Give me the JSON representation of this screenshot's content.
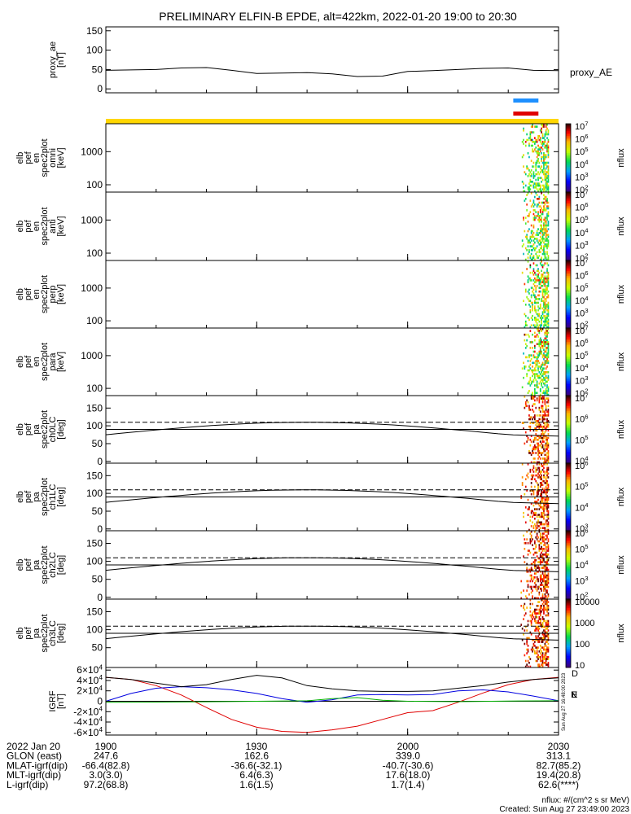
{
  "chart_data": {
    "type": "line",
    "title": "PRELIMINARY ELFIN-B EPDE, alt=422km, 2022-01-20 19:00 to 20:30",
    "x_range": [
      "2022-01-20 19:00",
      "2022-01-20 20:30"
    ],
    "panels": [
      {
        "id": "proxy_ae",
        "type": "line",
        "ylabel": [
          "proxy_ae",
          "[nT]"
        ],
        "ylim": [
          -10,
          160
        ],
        "yticks": [
          "0",
          "50",
          "100",
          "150"
        ],
        "right_label": "proxy_AE",
        "series": [
          {
            "name": "proxy_AE",
            "color": "#000000",
            "x": [
              "19:00",
              "19:05",
              "19:10",
              "19:15",
              "19:20",
              "19:25",
              "19:30",
              "19:35",
              "19:40",
              "19:45",
              "19:50",
              "19:55",
              "20:00",
              "20:05",
              "20:10",
              "20:15",
              "20:20",
              "20:25",
              "20:30"
            ],
            "y": [
              48,
              49,
              50,
              54,
              55,
              48,
              40,
              41,
              42,
              39,
              32,
              33,
              45,
              47,
              50,
              53,
              54,
              48,
              47
            ]
          }
        ],
        "flag_bars": [
          {
            "color": "#1e90ff",
            "from": "20:21",
            "to": "20:26"
          },
          {
            "color": "#e00000",
            "from": "20:21",
            "to": "20:26"
          }
        ],
        "full_bar": {
          "color": "#ffd700",
          "from": "19:00",
          "to": "20:30"
        }
      },
      {
        "id": "omni",
        "type": "heatmap",
        "ylabel": [
          "elb",
          "pef",
          "en",
          "spec2plot",
          "omni",
          "[keV]"
        ],
        "scale": "log",
        "ylim": [
          60,
          7000
        ],
        "yticks": [
          "100",
          "1000"
        ],
        "colorbar": {
          "label": "nflux",
          "ticks": [
            "10^2",
            "10^3",
            "10^4",
            "10^5",
            "10^6",
            "10^7"
          ]
        }
      },
      {
        "id": "anti",
        "type": "heatmap",
        "ylabel": [
          "elb",
          "pef",
          "en",
          "spec2plot",
          "anti",
          "[keV]"
        ],
        "scale": "log",
        "ylim": [
          60,
          7000
        ],
        "yticks": [
          "100",
          "1000"
        ],
        "colorbar": {
          "label": "nflux",
          "ticks": [
            "10^2",
            "10^3",
            "10^4",
            "10^5",
            "10^6",
            "10^7"
          ]
        }
      },
      {
        "id": "perp",
        "type": "heatmap",
        "ylabel": [
          "elb",
          "pef",
          "en",
          "spec2plot",
          "perp",
          "[keV]"
        ],
        "scale": "log",
        "ylim": [
          60,
          7000
        ],
        "yticks": [
          "100",
          "1000"
        ],
        "colorbar": {
          "label": "nflux",
          "ticks": [
            "10^2",
            "10^3",
            "10^4",
            "10^5",
            "10^6",
            "10^7"
          ]
        }
      },
      {
        "id": "para",
        "type": "heatmap",
        "ylabel": [
          "elb",
          "pef",
          "en",
          "spec2plot",
          "para",
          "[keV]"
        ],
        "scale": "log",
        "ylim": [
          60,
          7000
        ],
        "yticks": [
          "100",
          "1000"
        ],
        "colorbar": {
          "label": "nflux",
          "ticks": [
            "10^2",
            "10^3",
            "10^4",
            "10^5",
            "10^6",
            "10^7"
          ]
        }
      },
      {
        "id": "ch0LC",
        "type": "heatmap",
        "ylabel": [
          "elb",
          "pef",
          "pa",
          "spec2plot",
          "ch0LC",
          "[deg]"
        ],
        "ylim": [
          -5,
          185
        ],
        "yticks": [
          "0",
          "50",
          "100",
          "150"
        ],
        "colorbar": {
          "label": "nflux",
          "ticks": [
            "10^4",
            "10^5",
            "10^6",
            "10^7"
          ]
        }
      },
      {
        "id": "ch1LC",
        "type": "heatmap",
        "ylabel": [
          "elb",
          "pef",
          "pa",
          "spec2plot",
          "ch1LC",
          "[deg]"
        ],
        "ylim": [
          -5,
          185
        ],
        "yticks": [
          "0",
          "50",
          "100",
          "150"
        ],
        "colorbar": {
          "label": "nflux",
          "ticks": [
            "10^3",
            "10^4",
            "10^5",
            "10^6"
          ]
        }
      },
      {
        "id": "ch2LC",
        "type": "heatmap",
        "ylabel": [
          "elb",
          "pef",
          "pa",
          "spec2plot",
          "ch2LC",
          "[deg]"
        ],
        "ylim": [
          -5,
          185
        ],
        "yticks": [
          "0",
          "50",
          "100",
          "150"
        ],
        "colorbar": {
          "label": "nflux",
          "ticks": [
            "10^2",
            "10^3",
            "10^4",
            "10^5",
            "10^6"
          ]
        }
      },
      {
        "id": "ch3LC",
        "type": "heatmap",
        "ylabel": [
          "elb",
          "pef",
          "pa",
          "spec2plot",
          "ch3LC",
          "[deg]"
        ],
        "ylim": [
          -5,
          185
        ],
        "yticks": [
          "50",
          "100",
          "150"
        ],
        "colorbar": {
          "label": "nflux",
          "ticks": [
            "10",
            "100",
            "1000",
            "10000"
          ]
        }
      },
      {
        "id": "igrf",
        "type": "line",
        "ylabel": [
          "IGRF",
          "[nT]"
        ],
        "ylim": [
          -65000,
          65000
        ],
        "yticks": [
          "-6×10^4",
          "-4×10^4",
          "-2×10^4",
          "0",
          "2×10^4",
          "4×10^4",
          "6×10^4"
        ],
        "right_letters": [
          "D",
          "N",
          "E"
        ],
        "series": [
          {
            "name": "D",
            "color": "#e00000",
            "x": [
              "19:00",
              "19:05",
              "19:10",
              "19:15",
              "19:20",
              "19:25",
              "19:30",
              "19:35",
              "19:40",
              "19:45",
              "19:50",
              "19:55",
              "20:00",
              "20:05",
              "20:10",
              "20:15",
              "20:20",
              "20:25",
              "20:30"
            ],
            "y": [
              46000,
              42000,
              30000,
              12000,
              -12000,
              -35000,
              -50000,
              -58000,
              -60000,
              -55000,
              -48000,
              -35000,
              -22000,
              -18000,
              -2000,
              16000,
              32000,
              42000,
              46000
            ]
          },
          {
            "name": "N",
            "color": "#0000e0",
            "x": [
              "19:00",
              "19:05",
              "19:10",
              "19:15",
              "19:20",
              "19:25",
              "19:30",
              "19:35",
              "19:40",
              "19:45",
              "19:50",
              "19:55",
              "20:00",
              "20:05",
              "20:10",
              "20:15",
              "20:20",
              "20:25",
              "20:30"
            ],
            "y": [
              0,
              15000,
              25000,
              28000,
              26000,
              22000,
              15000,
              5000,
              -2000,
              3000,
              12000,
              13000,
              12000,
              13000,
              20000,
              22000,
              18000,
              10000,
              1000
            ]
          },
          {
            "name": "E",
            "color": "#000000",
            "x": [
              "19:00",
              "19:05",
              "19:10",
              "19:15",
              "19:20",
              "19:25",
              "19:30",
              "19:35",
              "19:40",
              "19:45",
              "19:50",
              "19:55",
              "20:00",
              "20:05",
              "20:10",
              "20:15",
              "20:20",
              "20:25",
              "20:30"
            ],
            "y": [
              46000,
              42000,
              35000,
              28000,
              32000,
              42000,
              50000,
              45000,
              30000,
              24000,
              20000,
              19000,
              19000,
              20000,
              25000,
              30000,
              37000,
              42000,
              45000
            ]
          },
          {
            "name": "",
            "color": "#00b000",
            "x": [
              "19:00",
              "19:10",
              "19:20",
              "19:30",
              "19:40",
              "19:45",
              "19:50",
              "19:55",
              "20:00",
              "20:10",
              "20:20",
              "20:30"
            ],
            "y": [
              -2000,
              -1500,
              -1000,
              0,
              1000,
              5000,
              7000,
              2000,
              0,
              -800,
              500,
              1000
            ]
          }
        ]
      }
    ],
    "x_labels": [
      "1900",
      "1930",
      "2000",
      "2030"
    ],
    "ephemeris": {
      "rows": [
        {
          "label": "2022 Jan 20",
          "values": [
            "1900",
            "1930",
            "2000",
            "2030"
          ]
        },
        {
          "label": "GLON (east)",
          "values": [
            "247.6",
            "162.6",
            "339.0",
            "313.1"
          ]
        },
        {
          "label": "MLAT-igrf(dip)",
          "values": [
            "-66.4(82.8)",
            "-36.6(-32.1)",
            "-40.7(-30.6)",
            "82.7(85.2)"
          ]
        },
        {
          "label": "MLT-igrf(dip)",
          "values": [
            "3.0(3.0)",
            "6.4(6.3)",
            "17.6(18.0)",
            "19.4(20.8)"
          ]
        },
        {
          "label": "L-igrf(dip)",
          "values": [
            "97.2(68.8)",
            "1.6(1.5)",
            "1.7(1.4)",
            "62.6(****)"
          ]
        }
      ]
    },
    "footer": [
      "nflux: #/(cm^2 s sr MeV)",
      "Created: Sun Aug 27 23:49:00 2023"
    ],
    "side_stamp": "Sun Aug 27 16:48:00 2023"
  }
}
